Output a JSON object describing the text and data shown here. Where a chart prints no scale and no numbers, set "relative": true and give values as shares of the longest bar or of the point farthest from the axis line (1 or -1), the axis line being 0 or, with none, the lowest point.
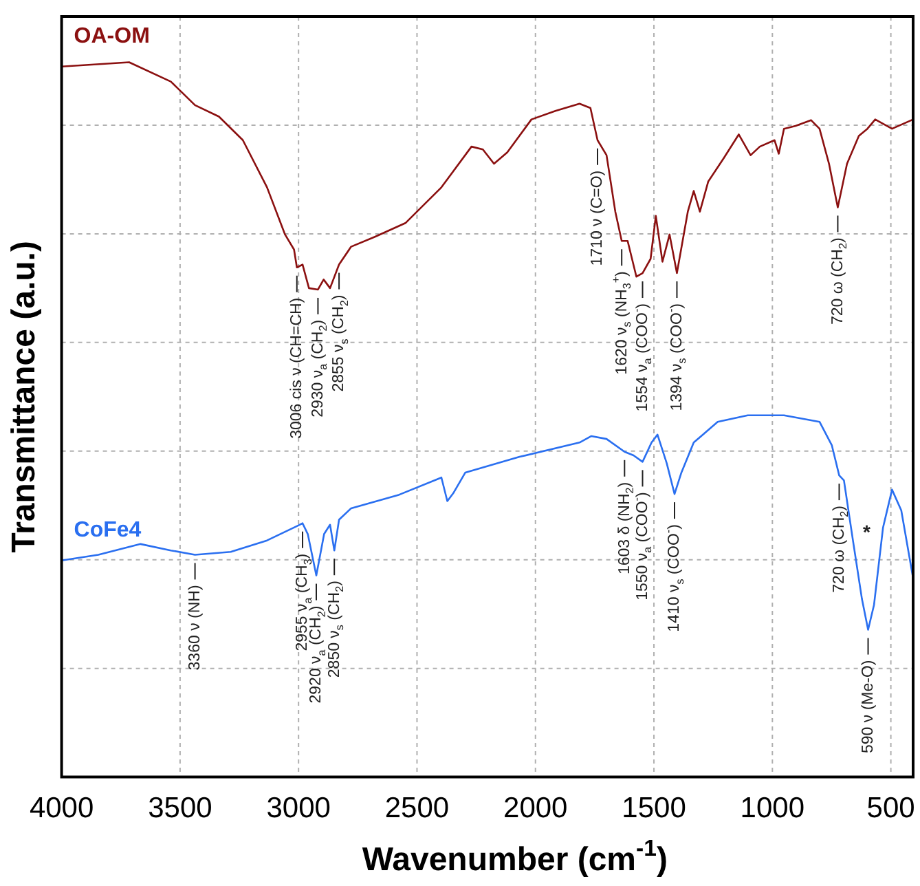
{
  "chart_data": {
    "type": "line",
    "relative": true,
    "xlabel": "Wavenumber (cm$^{-1}$)",
    "ylabel": "Transmittance (a.u.)",
    "xlim": [
      4000,
      406
    ],
    "xticks": [
      4000,
      3500,
      3000,
      2500,
      2000,
      1500,
      1000,
      500
    ],
    "grid": true,
    "legend": false,
    "marker": "none",
    "line_style": "solid",
    "series": [
      {
        "name": "OA-OM",
        "color": "#8b1010",
        "x": [
          4000,
          3715,
          3539,
          3437,
          3336,
          3235,
          3133,
          3057,
          3019,
          3007,
          2983,
          2956,
          2918,
          2894,
          2867,
          2829,
          2778,
          2676,
          2549,
          2397,
          2270,
          2222,
          2175,
          2119,
          2017,
          1916,
          1814,
          1768,
          1738,
          1700,
          1663,
          1636,
          1611,
          1574,
          1548,
          1514,
          1492,
          1464,
          1434,
          1403,
          1357,
          1332,
          1306,
          1271,
          1205,
          1142,
          1092,
          1053,
          991,
          973,
          951,
          902,
          837,
          801,
          761,
          724,
          685,
          635,
          599,
          566,
          495,
          406
        ],
        "values": [
          0.994,
          1.0,
          0.973,
          0.94,
          0.924,
          0.891,
          0.825,
          0.759,
          0.738,
          0.713,
          0.717,
          0.684,
          0.682,
          0.696,
          0.684,
          0.717,
          0.742,
          0.756,
          0.775,
          0.825,
          0.882,
          0.878,
          0.858,
          0.874,
          0.92,
          0.932,
          0.942,
          0.936,
          0.891,
          0.87,
          0.791,
          0.75,
          0.75,
          0.7,
          0.705,
          0.725,
          0.785,
          0.721,
          0.759,
          0.705,
          0.791,
          0.82,
          0.791,
          0.833,
          0.866,
          0.899,
          0.87,
          0.882,
          0.891,
          0.872,
          0.907,
          0.911,
          0.919,
          0.907,
          0.858,
          0.797,
          0.858,
          0.897,
          0.907,
          0.92,
          0.907,
          0.92
        ]
      },
      {
        "name": "CoFe4",
        "color": "#2a6ff0",
        "x": [
          4000,
          3845,
          3667,
          3539,
          3437,
          3286,
          3133,
          3007,
          2983,
          2961,
          2925,
          2892,
          2867,
          2849,
          2829,
          2778,
          2575,
          2397,
          2372,
          2347,
          2296,
          2067,
          1814,
          1764,
          1700,
          1624,
          1586,
          1548,
          1510,
          1485,
          1446,
          1413,
          1384,
          1332,
          1231,
          1104,
          951,
          801,
          749,
          718,
          698,
          660,
          622,
          596,
          571,
          533,
          495,
          456,
          406
        ],
        "values": [
          0.303,
          0.311,
          0.326,
          0.317,
          0.311,
          0.315,
          0.331,
          0.351,
          0.355,
          0.34,
          0.282,
          0.34,
          0.353,
          0.317,
          0.36,
          0.376,
          0.395,
          0.419,
          0.386,
          0.397,
          0.426,
          0.448,
          0.468,
          0.477,
          0.473,
          0.455,
          0.45,
          0.441,
          0.468,
          0.479,
          0.439,
          0.396,
          0.426,
          0.468,
          0.497,
          0.506,
          0.506,
          0.497,
          0.464,
          0.422,
          0.415,
          0.331,
          0.249,
          0.206,
          0.241,
          0.349,
          0.402,
          0.373,
          0.278
        ]
      }
    ],
    "annotations": [
      {
        "text": "3006 cis ν (CH=CH)",
        "x": 3007,
        "y": 0.713
      },
      {
        "text": "2930 ν$_{a}$ (CH$_{2}$)",
        "x": 2918,
        "y": 0.682
      },
      {
        "text": "2855 ν$_{s}$ (CH$_{2}$)",
        "x": 2829,
        "y": 0.717
      },
      {
        "text": "1710 ν (C=O)",
        "x": 1738,
        "y": 0.891
      },
      {
        "text": "1620 ν$_{s}$ (NH$_{3}$$^{+}$)",
        "x": 1636,
        "y": 0.75
      },
      {
        "text": "1554 ν$_{a}$ (COO$^{-}$)",
        "x": 1548,
        "y": 0.705
      },
      {
        "text": "1394 ν$_{s}$ (COO$^{-}$)",
        "x": 1403,
        "y": 0.705
      },
      {
        "text": "720 ω (CH$_{2}$)",
        "x": 724,
        "y": 0.797
      },
      {
        "text": "3360 ν (NH)",
        "x": 3437,
        "y": 0.311
      },
      {
        "text": "2955 ν$_{a}$ (CH$_{3}$)",
        "x": 2983,
        "y": 0.355
      },
      {
        "text": "2920 ν$_{a}$ (CH$_{2}$)",
        "x": 2925,
        "y": 0.282
      },
      {
        "text": "2850 ν$_{s}$ (CH$_{2}$)",
        "x": 2849,
        "y": 0.317
      },
      {
        "text": "1603 δ (NH$_{2}$)",
        "x": 1624,
        "y": 0.455
      },
      {
        "text": "1550 ν$_{a}$ (COO$^{-}$)",
        "x": 1548,
        "y": 0.441
      },
      {
        "text": "1410 ν$_{s}$ (COO$^{-}$)",
        "x": 1413,
        "y": 0.396
      },
      {
        "text": "720 ω (CH$_{2}$)",
        "x": 718,
        "y": 0.422
      },
      {
        "text": "590 ν (Me-O)",
        "x": 596,
        "y": 0.206
      },
      {
        "text": "*",
        "x": 660,
        "y": 0.331
      }
    ]
  }
}
